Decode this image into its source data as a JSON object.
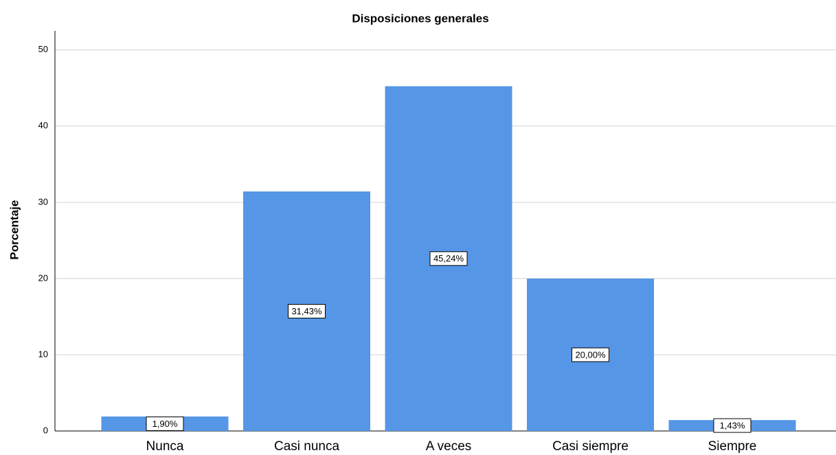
{
  "chart_data": {
    "type": "bar",
    "title": "Disposiciones generales",
    "y_label": "Porcentaje",
    "categories": [
      "Nunca",
      "Casi nunca",
      "A veces",
      "Casi siempre",
      "Siempre"
    ],
    "values": [
      1.9,
      31.43,
      45.24,
      20.0,
      1.43
    ],
    "value_labels": [
      "1,90%",
      "31,43%",
      "45,24%",
      "20,00%",
      "1,43%"
    ],
    "color": "#5596e6",
    "ylim": [
      0,
      52.5
    ],
    "yticks": [
      0,
      10,
      20,
      30,
      40,
      50
    ],
    "grid": true
  }
}
